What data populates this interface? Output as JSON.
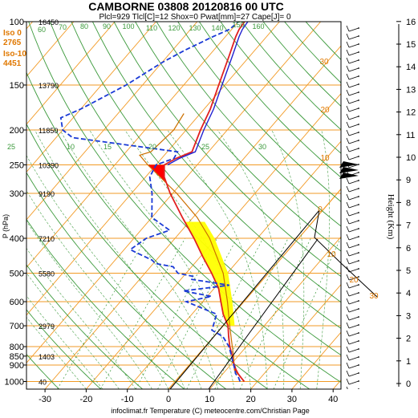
{
  "chart_data": {
    "type": "line",
    "title": "CAMBORNE 03808 20120816 00 UTC",
    "subtitle": "Plcl=929 Tlcl[C]=12 Shox=0 Pwat[mm]=27 Cape[J]= 0",
    "xlabel": "infoclimat.fr Temperature (C) meteocentre.com/Christian Page",
    "ylabel": "P (hPa)",
    "y2label": "Height (Km)",
    "xlim": [
      -35,
      42
    ],
    "ylim": [
      1050,
      100
    ],
    "y_scale": "log",
    "x_ticks": [
      "-30",
      "-20",
      "-10",
      "0",
      "10",
      "20",
      "30",
      "40"
    ],
    "pressure_ticks": [
      "100",
      "150",
      "200",
      "250",
      "300",
      "400",
      "500",
      "600",
      "700",
      "800",
      "850",
      "900",
      "1000"
    ],
    "height_ticks": [
      "0",
      "1",
      "2",
      "3",
      "4",
      "5",
      "6",
      "7",
      "8",
      "9",
      "10",
      "11",
      "12",
      "13",
      "14",
      "15",
      "16"
    ],
    "level_heights": [
      {
        "p": 100,
        "label": "16450"
      },
      {
        "p": 150,
        "label": "13790"
      },
      {
        "p": 200,
        "label": "11850"
      },
      {
        "p": 250,
        "label": "10390"
      },
      {
        "p": 300,
        "label": "9190"
      },
      {
        "p": 400,
        "label": "7210"
      },
      {
        "p": 500,
        "label": "5580"
      },
      {
        "p": 700,
        "label": "2979"
      },
      {
        "p": 850,
        "label": "1403"
      },
      {
        "p": 1000,
        "label": "40"
      }
    ],
    "freezing_levels": [
      {
        "label": "Iso 0",
        "value": "2765"
      },
      {
        "label": "Iso-10",
        "value": "4451"
      }
    ],
    "mixing_ratio_labels": [
      "25",
      "10",
      "15",
      "20",
      "25",
      "30"
    ],
    "dry_adiabat_labels": [
      "60",
      "70",
      "80",
      "90",
      "100",
      "110",
      "120",
      "130",
      "140",
      "150",
      "160"
    ],
    "skewed_isotherm_labels": [
      "30",
      "20",
      "10",
      "0",
      "10",
      "20",
      "30"
    ],
    "theta_e_labels": [
      "40",
      "30",
      "20",
      "10",
      "0",
      "10",
      "20",
      "1",
      "3",
      "6",
      "9",
      "12"
    ],
    "series": [
      {
        "name": "Temperature",
        "color": "#e02020",
        "points": [
          [
            1000,
            16.8
          ],
          [
            975,
            15.2
          ],
          [
            950,
            13.6
          ],
          [
            925,
            12.2
          ],
          [
            900,
            11.0
          ],
          [
            875,
            9.6
          ],
          [
            850,
            8.6
          ],
          [
            800,
            6.0
          ],
          [
            750,
            3.6
          ],
          [
            700,
            1.2
          ],
          [
            650,
            -2.4
          ],
          [
            600,
            -5.6
          ],
          [
            550,
            -9.0
          ],
          [
            500,
            -13.8
          ],
          [
            450,
            -19.4
          ],
          [
            400,
            -25.4
          ],
          [
            350,
            -32.6
          ],
          [
            300,
            -40.6
          ],
          [
            270,
            -45.5
          ],
          [
            250,
            -48.0
          ],
          [
            240,
            -46.5
          ],
          [
            230,
            -44.0
          ],
          [
            200,
            -46.5
          ],
          [
            175,
            -48.5
          ],
          [
            150,
            -51.5
          ],
          [
            125,
            -55.0
          ],
          [
            110,
            -57.5
          ],
          [
            105,
            -58.2
          ],
          [
            100,
            -58.5
          ]
        ]
      },
      {
        "name": "Dew point",
        "color": "#1a3ad6",
        "points": [
          [
            1000,
            15.8
          ],
          [
            975,
            14.6
          ],
          [
            950,
            13.0
          ],
          [
            925,
            12.0
          ],
          [
            900,
            10.8
          ],
          [
            875,
            9.6
          ],
          [
            850,
            8.4
          ],
          [
            800,
            5.8
          ],
          [
            750,
            2.2
          ],
          [
            720,
            -1.8
          ],
          [
            700,
            -2.4
          ],
          [
            650,
            -4.0
          ],
          [
            600,
            -14.0
          ],
          [
            580,
            -9.0
          ],
          [
            560,
            -17.0
          ],
          [
            540,
            -7.0
          ],
          [
            520,
            -17.5
          ],
          [
            510,
            -17.8
          ],
          [
            500,
            -22.0
          ],
          [
            480,
            -24.5
          ],
          [
            470,
            -29.5
          ],
          [
            460,
            -31.0
          ],
          [
            440,
            -36.0
          ],
          [
            430,
            -38.5
          ],
          [
            400,
            -37.0
          ],
          [
            380,
            -33.0
          ],
          [
            350,
            -40.0
          ],
          [
            300,
            -45.0
          ],
          [
            270,
            -49.0
          ],
          [
            250,
            -50.0
          ],
          [
            240,
            -47.0
          ],
          [
            230,
            -47.5
          ],
          [
            210,
            -76.0
          ],
          [
            200,
            -80.0
          ],
          [
            185,
            -83.0
          ],
          [
            175,
            -80.0
          ],
          [
            150,
            -74.0
          ],
          [
            130,
            -70.0
          ],
          [
            120,
            -67.0
          ],
          [
            110,
            -63.0
          ],
          [
            105,
            -60.5
          ],
          [
            100,
            -60.0
          ]
        ]
      },
      {
        "name": "Parcel",
        "color": "#cc7000",
        "points": [
          [
            1000,
            16.8
          ],
          [
            929,
            12.0
          ],
          [
            900,
            10.9
          ],
          [
            850,
            8.9
          ],
          [
            800,
            6.6
          ],
          [
            700,
            1.6
          ],
          [
            600,
            -4.0
          ],
          [
            500,
            -11.0
          ],
          [
            400,
            -21.6
          ],
          [
            350,
            -29.0
          ],
          [
            300,
            -39.0
          ],
          [
            250,
            -52.0
          ],
          [
            235,
            -56.0
          ],
          [
            230,
            -54.0
          ],
          [
            200,
            -53.0
          ],
          [
            180,
            -54.0
          ]
        ]
      }
    ],
    "shading": [
      {
        "name": "CIN",
        "color": "#ff0000"
      },
      {
        "name": "CAPE",
        "color": "#ffff00"
      }
    ],
    "colors": {
      "isobar": "#f29a24",
      "isotherm": "#f29a24",
      "dry_adiabat": "#3c9a3c",
      "moist_adiabat": "#3c9a3c",
      "mixing_ratio": "#3c9a3c",
      "theta_e": "#e07800",
      "hodograph": "#000000"
    },
    "grid": true,
    "wind_barbs": "right side, one per level"
  }
}
